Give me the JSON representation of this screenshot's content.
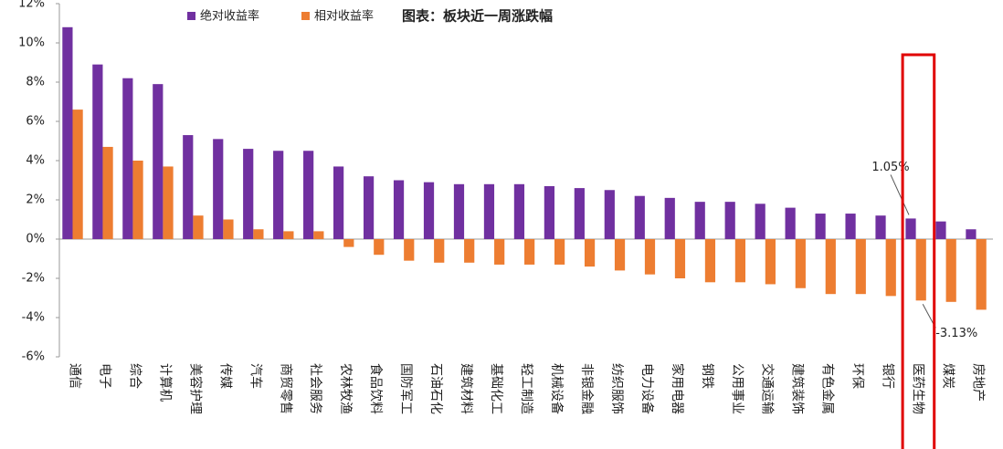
{
  "chart_data": {
    "type": "bar",
    "title": "图表：板块近一周涨跌幅",
    "categories": [
      "通信",
      "电子",
      "综合",
      "计算机",
      "美容护理",
      "传媒",
      "汽车",
      "商贸零售",
      "社会服务",
      "农林牧渔",
      "食品饮料",
      "国防军工",
      "石油石化",
      "建筑材料",
      "基础化工",
      "轻工制造",
      "机械设备",
      "非银金融",
      "纺织服饰",
      "电力设备",
      "家用电器",
      "钢铁",
      "公用事业",
      "交通运输",
      "建筑装饰",
      "有色金属",
      "环保",
      "银行",
      "医药生物",
      "煤炭",
      "房地产"
    ],
    "series": [
      {
        "name": "绝对收益率",
        "color": "#7030a0",
        "values": [
          10.8,
          8.9,
          8.2,
          7.9,
          5.3,
          5.1,
          4.6,
          4.5,
          4.5,
          3.7,
          3.2,
          3.0,
          2.9,
          2.8,
          2.8,
          2.8,
          2.7,
          2.6,
          2.5,
          2.2,
          2.1,
          1.9,
          1.9,
          1.8,
          1.6,
          1.3,
          1.3,
          1.2,
          1.05,
          0.9,
          0.5
        ],
        "value_labels": [
          null,
          null,
          null,
          null,
          null,
          null,
          null,
          null,
          null,
          null,
          null,
          null,
          null,
          null,
          null,
          null,
          null,
          null,
          null,
          null,
          null,
          null,
          null,
          null,
          null,
          null,
          null,
          null,
          "1.05%",
          null,
          null
        ]
      },
      {
        "name": "相对收益率",
        "color": "#ed7d31",
        "values": [
          6.6,
          4.7,
          4.0,
          3.7,
          1.2,
          1.0,
          0.5,
          0.4,
          0.4,
          -0.4,
          -0.8,
          -1.1,
          -1.2,
          -1.2,
          -1.3,
          -1.3,
          -1.3,
          -1.4,
          -1.6,
          -1.8,
          -2.0,
          -2.2,
          -2.2,
          -2.3,
          -2.5,
          -2.8,
          -2.8,
          -2.9,
          -3.13,
          -3.2,
          -3.6
        ],
        "value_labels": [
          null,
          null,
          null,
          null,
          null,
          null,
          null,
          null,
          null,
          null,
          null,
          null,
          null,
          null,
          null,
          null,
          null,
          null,
          null,
          null,
          null,
          null,
          null,
          null,
          null,
          null,
          null,
          null,
          "-3.13%",
          null,
          null
        ]
      }
    ],
    "ylim": [
      -6,
      12
    ],
    "yticks": [
      {
        "value": -6,
        "label": "-6%"
      },
      {
        "value": -4,
        "label": "-4%"
      },
      {
        "value": -2,
        "label": "-2%"
      },
      {
        "value": 0,
        "label": "0%"
      },
      {
        "value": 2,
        "label": "2%"
      },
      {
        "value": 4,
        "label": "4%"
      },
      {
        "value": 6,
        "label": "6%"
      },
      {
        "value": 8,
        "label": "8%"
      },
      {
        "value": 10,
        "label": "10%"
      },
      {
        "value": 12,
        "label": "12%"
      }
    ],
    "highlight_category": "医药生物",
    "highlight_color": "#e00000"
  }
}
